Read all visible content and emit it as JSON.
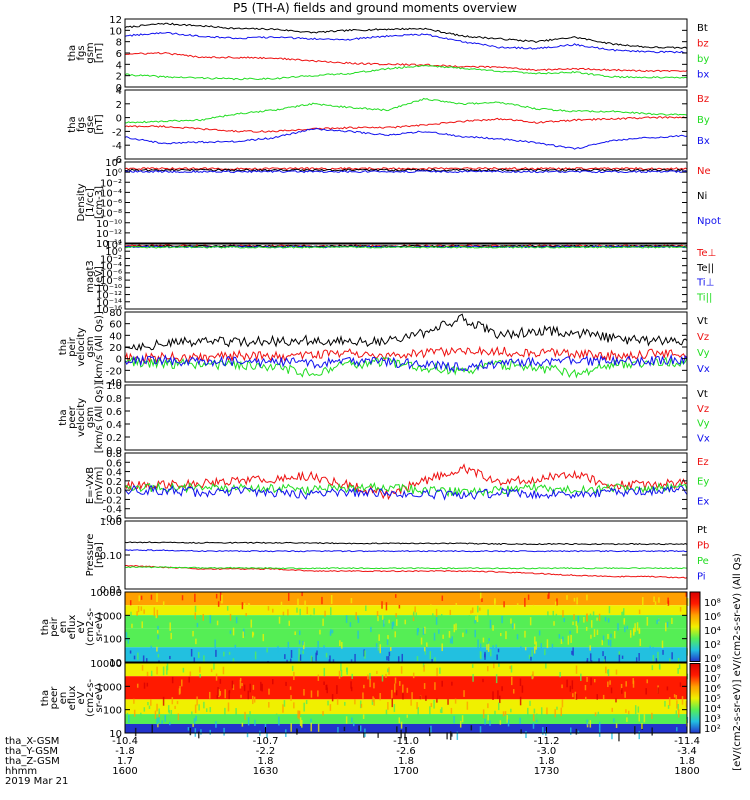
{
  "title": "P5 (TH-A) fields and ground moments overview",
  "colors": {
    "black": "#000000",
    "red": "#ee1111",
    "green": "#22dd22",
    "blue": "#1111ee"
  },
  "chart_data": [
    {
      "type": "line",
      "panel": "fgs-gsm",
      "ylabel": [
        "tha",
        "fgs",
        "gsm",
        "[nT]"
      ],
      "ylim": [
        0,
        12
      ],
      "yticks": [
        "12",
        "10",
        "8",
        "6",
        "4",
        "2",
        "0"
      ],
      "series": [
        {
          "name": "Bt",
          "color": "black",
          "values": [
            10.5,
            11.2,
            10.8,
            10.3,
            10.2,
            9.6,
            10.0,
            10.2,
            10.3,
            9.0,
            8.5,
            8.0,
            8.8,
            7.6,
            7.0,
            6.9
          ]
        },
        {
          "name": "bz",
          "color": "red",
          "values": [
            5.8,
            6.0,
            5.3,
            5.2,
            5.1,
            4.6,
            4.2,
            4.0,
            3.9,
            3.6,
            3.5,
            3.0,
            3.2,
            3.0,
            2.8,
            2.8
          ]
        },
        {
          "name": "by",
          "color": "green",
          "values": [
            2.2,
            1.8,
            1.6,
            1.4,
            1.5,
            2.0,
            2.4,
            3.2,
            3.8,
            3.3,
            2.8,
            2.4,
            2.6,
            1.8,
            1.7,
            1.6
          ]
        },
        {
          "name": "bx",
          "color": "blue",
          "values": [
            9.0,
            9.6,
            9.0,
            8.6,
            8.8,
            8.5,
            8.4,
            9.0,
            9.3,
            8.0,
            7.0,
            6.8,
            7.5,
            6.5,
            6.2,
            6.1
          ]
        }
      ]
    },
    {
      "type": "line",
      "panel": "fgs-gse",
      "ylabel": [
        "tha",
        "fgs",
        "gse",
        "[nT]"
      ],
      "ylim": [
        -7,
        4
      ],
      "yticks": [
        "4",
        "2",
        "0",
        "-2",
        "-4",
        "-6"
      ],
      "series": [
        {
          "name": "Bz",
          "color": "red",
          "values": [
            -1.8,
            -1.8,
            -2.2,
            -2.6,
            -2.6,
            -2.2,
            -2.0,
            -2.0,
            -1.6,
            -1.0,
            -0.6,
            -1.2,
            -0.8,
            -0.6,
            -0.4,
            -0.4
          ]
        },
        {
          "name": "By",
          "color": "green",
          "values": [
            -1.2,
            -1.0,
            -0.8,
            0.2,
            0.8,
            1.8,
            1.2,
            0.8,
            2.6,
            1.8,
            2.0,
            1.0,
            0.6,
            0.6,
            0.2,
            0.0
          ]
        },
        {
          "name": "Bx",
          "color": "blue",
          "values": [
            -3.5,
            -4.5,
            -4.3,
            -4.2,
            -3.6,
            -2.2,
            -2.6,
            -3.2,
            -2.6,
            -3.4,
            -3.8,
            -4.4,
            -5.4,
            -4.0,
            -3.6,
            -3.3
          ]
        }
      ]
    },
    {
      "type": "line",
      "panel": "density",
      "ylabel": [
        "Density",
        "[1/cc]",
        "[cm-3]"
      ],
      "ylim": [
        -14,
        2
      ],
      "yticks": [
        "10²",
        "10⁰",
        "10⁻²",
        "10⁻⁴",
        "10⁻⁶",
        "10⁻⁸",
        "10⁻¹⁰",
        "10⁻¹²",
        "10⁻¹⁴"
      ],
      "series": [
        {
          "name": "Ne",
          "color": "red",
          "values": [
            0.7,
            0.7,
            0.7,
            0.7,
            0.7,
            0.7,
            0.7,
            0.7,
            0.7,
            0.7,
            0.7,
            0.7,
            0.7,
            0.7,
            0.7,
            0.7
          ]
        },
        {
          "name": "Ni",
          "color": "black",
          "values": [
            0.4,
            0.4,
            0.4,
            0.4,
            0.4,
            0.4,
            0.4,
            0.4,
            0.4,
            0.4,
            0.4,
            0.4,
            0.4,
            0.4,
            0.4,
            0.4
          ]
        },
        {
          "name": "Npot",
          "color": "blue",
          "values": [
            0.1,
            0.1,
            0.1,
            0.1,
            0.1,
            0.1,
            0.1,
            0.1,
            0.1,
            0.1,
            0.1,
            0.1,
            0.1,
            0.1,
            0.1,
            0.1
          ]
        }
      ]
    },
    {
      "type": "line",
      "panel": "temperature",
      "ylabel": [
        "magt3",
        "[eV]"
      ],
      "ylim": [
        -16,
        2
      ],
      "yticks": [
        "10²",
        "10⁰",
        "10⁻²",
        "10⁻⁴",
        "10⁻⁶",
        "10⁻⁸",
        "10⁻¹⁰",
        "10⁻¹²",
        "10⁻¹⁴",
        "10⁻¹⁶"
      ],
      "series": [
        {
          "name": "Te⊥",
          "color": "red",
          "values": [
            1.5,
            1.5,
            1.5,
            1.5,
            1.5,
            1.5,
            1.5,
            1.5,
            1.5,
            1.5,
            1.5,
            1.5,
            1.5,
            1.5,
            1.5,
            1.5
          ]
        },
        {
          "name": "Te||",
          "color": "black",
          "values": [
            1.4,
            1.4,
            1.4,
            1.4,
            1.4,
            1.4,
            1.4,
            1.4,
            1.4,
            1.4,
            1.4,
            1.4,
            1.4,
            1.4,
            1.4,
            1.4
          ]
        },
        {
          "name": "Ti⊥",
          "color": "blue",
          "values": [
            1.2,
            1.2,
            1.2,
            1.2,
            1.2,
            1.2,
            1.2,
            1.2,
            1.2,
            1.2,
            1.2,
            1.2,
            1.2,
            1.2,
            1.2,
            1.2
          ]
        },
        {
          "name": "Ti||",
          "color": "green",
          "values": [
            1.1,
            1.1,
            1.1,
            1.1,
            1.1,
            1.1,
            1.1,
            1.1,
            1.1,
            1.1,
            1.1,
            1.1,
            1.1,
            1.1,
            1.1,
            1.1
          ]
        }
      ]
    },
    {
      "type": "line",
      "panel": "peir-velocity",
      "ylabel": [
        "tha",
        "peir",
        "velocity",
        "gsm",
        "[km/s (All Qs)]"
      ],
      "ylim": [
        -40,
        80
      ],
      "yticks": [
        "80",
        "60",
        "40",
        "20",
        "0",
        "-20",
        "-40"
      ],
      "series": [
        {
          "name": "Vt",
          "color": "black",
          "values": [
            20,
            25,
            30,
            28,
            30,
            32,
            28,
            30,
            45,
            70,
            40,
            48,
            45,
            35,
            30,
            32
          ]
        },
        {
          "name": "Vz",
          "color": "red",
          "values": [
            0,
            2,
            3,
            5,
            4,
            5,
            10,
            6,
            8,
            15,
            12,
            10,
            8,
            5,
            8,
            10
          ]
        },
        {
          "name": "Vy",
          "color": "green",
          "values": [
            -5,
            -8,
            -10,
            -12,
            -15,
            -25,
            -10,
            -5,
            -15,
            -20,
            -10,
            -15,
            -25,
            -10,
            -8,
            -5
          ]
        },
        {
          "name": "Vx",
          "color": "blue",
          "values": [
            -2,
            -3,
            -5,
            -4,
            -6,
            -8,
            -5,
            -6,
            -10,
            -15,
            -8,
            -6,
            -5,
            -4,
            -3,
            -2
          ]
        }
      ]
    },
    {
      "type": "line",
      "panel": "peer-velocity",
      "ylabel": [
        "tha",
        "peer",
        "velocity",
        "gsm",
        "[km/s (All Qs)]"
      ],
      "ylim": [
        0,
        1
      ],
      "yticks": [
        "1.0",
        "0.8",
        "0.6",
        "0.4",
        "0.2",
        "0.0"
      ],
      "series": [
        {
          "name": "Vt",
          "color": "black",
          "values": []
        },
        {
          "name": "Vz",
          "color": "red",
          "values": []
        },
        {
          "name": "Vy",
          "color": "green",
          "values": []
        },
        {
          "name": "Vx",
          "color": "blue",
          "values": []
        }
      ]
    },
    {
      "type": "line",
      "panel": "efield",
      "ylabel": [
        "E=-VxB",
        "[mV/m]"
      ],
      "ylim": [
        -0.6,
        0.8
      ],
      "yticks": [
        "0.8",
        "0.6",
        "0.4",
        "0.2",
        "0.0",
        "-0.2",
        "-0.4",
        "-0.6"
      ],
      "series": [
        {
          "name": "Ez",
          "color": "red",
          "values": [
            0.1,
            0.12,
            0.15,
            0.2,
            0.25,
            0.3,
            0.1,
            -0.1,
            0.2,
            0.5,
            0.15,
            0.25,
            0.35,
            0.1,
            0.12,
            0.15
          ]
        },
        {
          "name": "Ey",
          "color": "green",
          "values": [
            0.05,
            0.05,
            0.05,
            0.05,
            0.05,
            0.0,
            0.05,
            0.05,
            0.0,
            -0.05,
            0.0,
            0.05,
            0.0,
            0.05,
            0.05,
            0.05
          ]
        },
        {
          "name": "Ex",
          "color": "blue",
          "values": [
            0.0,
            0.0,
            -0.05,
            -0.02,
            -0.05,
            -0.1,
            -0.05,
            -0.05,
            -0.08,
            -0.12,
            -0.05,
            -0.1,
            -0.08,
            -0.05,
            -0.02,
            0.0
          ]
        }
      ]
    },
    {
      "type": "line",
      "panel": "pressure",
      "ylabel": [
        "Pressure",
        "[nPa]"
      ],
      "ylog": true,
      "ylim": [
        0.008,
        1.2
      ],
      "yticks": [
        "1.00",
        "0.10",
        "0.01"
      ],
      "series": [
        {
          "name": "Pt",
          "color": "black",
          "values": [
            0.25,
            0.25,
            0.24,
            0.24,
            0.24,
            0.24,
            0.23,
            0.23,
            0.23,
            0.23,
            0.22,
            0.22,
            0.22,
            0.22,
            0.22,
            0.22
          ]
        },
        {
          "name": "Pb",
          "color": "red",
          "values": [
            0.045,
            0.04,
            0.035,
            0.035,
            0.035,
            0.03,
            0.03,
            0.03,
            0.03,
            0.03,
            0.028,
            0.025,
            0.022,
            0.02,
            0.02,
            0.018
          ]
        },
        {
          "name": "Pe",
          "color": "green",
          "values": [
            0.04,
            0.04,
            0.038,
            0.038,
            0.037,
            0.037,
            0.037,
            0.037,
            0.037,
            0.037,
            0.037,
            0.037,
            0.037,
            0.037,
            0.037,
            0.037
          ]
        },
        {
          "name": "Pi",
          "color": "blue",
          "values": [
            0.14,
            0.14,
            0.13,
            0.13,
            0.13,
            0.13,
            0.13,
            0.13,
            0.13,
            0.13,
            0.13,
            0.13,
            0.13,
            0.13,
            0.13,
            0.13
          ]
        }
      ]
    },
    {
      "type": "heatmap",
      "panel": "peir-eflux",
      "ylabel": [
        "tha",
        "peir",
        "en",
        "eflux",
        "eV",
        "(cm2-s-",
        "sr-eV)"
      ],
      "ylog": true,
      "ylim": [
        5,
        25000
      ],
      "yticks": [
        "10000",
        "1000",
        "100",
        "10"
      ],
      "bands": [
        {
          "from": 5000,
          "to": 25000,
          "level": 2
        },
        {
          "from": 1500,
          "to": 5000,
          "level": 3
        },
        {
          "from": 300,
          "to": 1500,
          "level": 4
        },
        {
          "from": 30,
          "to": 300,
          "level": 4
        },
        {
          "from": 5,
          "to": 30,
          "level": 5
        }
      ]
    },
    {
      "type": "heatmap",
      "panel": "peer-eflux",
      "ylabel": [
        "tha",
        "peer",
        "en",
        "eflux",
        "eV",
        "(cm2-s-",
        "sr-eV)"
      ],
      "ylog": true,
      "ylim": [
        5,
        25000
      ],
      "yticks": [
        "10000",
        "1000",
        "100",
        "10"
      ],
      "bands": [
        {
          "from": 5000,
          "to": 25000,
          "level": 3
        },
        {
          "from": 300,
          "to": 5000,
          "level": 1
        },
        {
          "from": 50,
          "to": 300,
          "level": 3
        },
        {
          "from": 15,
          "to": 50,
          "level": 4
        },
        {
          "from": 5,
          "to": 15,
          "level": 6
        }
      ]
    }
  ],
  "colorbar": {
    "label": "[eV/(cm2-s-sr-eV)] eV/(cm2-s-sr-eV) (All Qs)",
    "ticks_top": [
      "10⁸",
      "10⁶",
      "10⁴",
      "10²",
      "10⁰"
    ],
    "ticks_bottom": [
      "10⁸",
      "10⁷",
      "10⁶",
      "10⁵",
      "10⁴",
      "10³",
      "10²"
    ]
  },
  "x_axis": {
    "rows": [
      {
        "label": "tha_X-GSM",
        "values": [
          "-10.4",
          "-10.7",
          "-11.0",
          "-11.2",
          "-11.4"
        ]
      },
      {
        "label": "tha_Y-GSM",
        "values": [
          "-1.8",
          "-2.2",
          "-2.6",
          "-3.0",
          "-3.4"
        ]
      },
      {
        "label": "tha_Z-GSM",
        "values": [
          "1.7",
          "1.8",
          "1.8",
          "1.8",
          "1.8"
        ]
      },
      {
        "label": "hhmm",
        "values": [
          "1600",
          "1630",
          "1700",
          "1730",
          "1800"
        ]
      }
    ],
    "date": "2019 Mar 21"
  }
}
